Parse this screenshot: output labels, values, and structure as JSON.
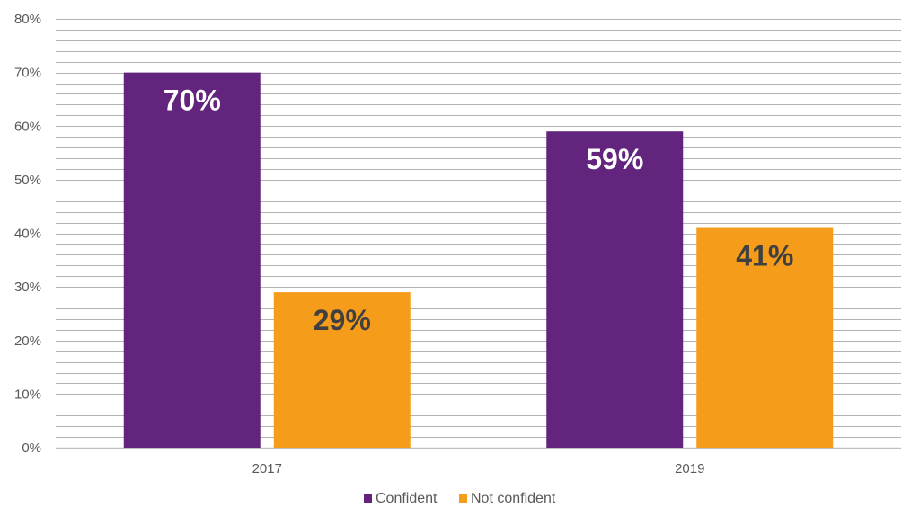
{
  "chart_data": {
    "type": "bar",
    "categories": [
      "2017",
      "2019"
    ],
    "series": [
      {
        "name": "Confident",
        "values": [
          70,
          59
        ],
        "labels": [
          "70%",
          "59%"
        ],
        "color": "#63247D",
        "label_color": "#ffffff"
      },
      {
        "name": "Not confident",
        "values": [
          29,
          41
        ],
        "labels": [
          "29%",
          "41%"
        ],
        "color": "#F59C1A",
        "label_color": "#404040"
      }
    ],
    "ylim": [
      0,
      80
    ],
    "yticks": [
      0,
      10,
      20,
      30,
      40,
      50,
      60,
      70,
      80
    ],
    "ytick_labels": [
      "0%",
      "10%",
      "20%",
      "30%",
      "40%",
      "50%",
      "60%",
      "70%",
      "80%"
    ],
    "minor_gridlines_per_major": 5,
    "grid": true,
    "legend_position": "bottom-center"
  }
}
